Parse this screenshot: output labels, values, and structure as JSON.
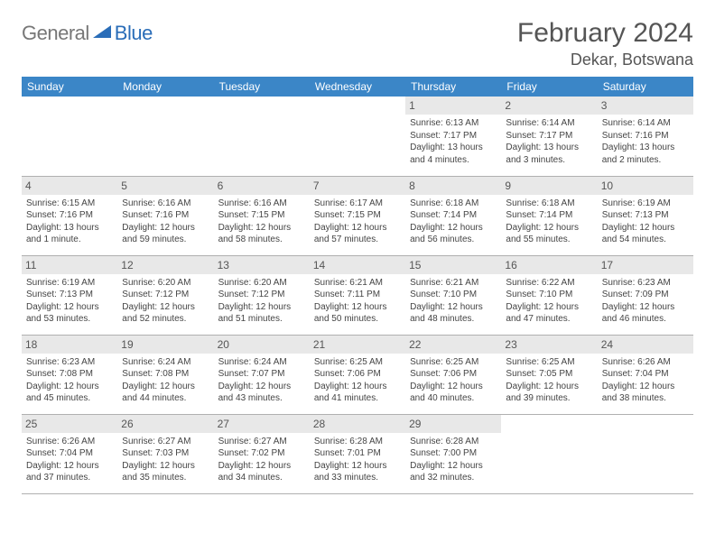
{
  "logo": {
    "gray": "General",
    "blue": "Blue"
  },
  "title": "February 2024",
  "location": "Dekar, Botswana",
  "colors": {
    "header_bg": "#3b86c7",
    "header_text": "#ffffff",
    "daynum_bg": "#e8e8e8",
    "border": "#b0b0b0",
    "logo_gray": "#777777",
    "logo_blue": "#2a6db8"
  },
  "weekdays": [
    "Sunday",
    "Monday",
    "Tuesday",
    "Wednesday",
    "Thursday",
    "Friday",
    "Saturday"
  ],
  "weeks": [
    [
      null,
      null,
      null,
      null,
      {
        "n": "1",
        "sr": "6:13 AM",
        "ss": "7:17 PM",
        "dl": "13 hours and 4 minutes."
      },
      {
        "n": "2",
        "sr": "6:14 AM",
        "ss": "7:17 PM",
        "dl": "13 hours and 3 minutes."
      },
      {
        "n": "3",
        "sr": "6:14 AM",
        "ss": "7:16 PM",
        "dl": "13 hours and 2 minutes."
      }
    ],
    [
      {
        "n": "4",
        "sr": "6:15 AM",
        "ss": "7:16 PM",
        "dl": "13 hours and 1 minute."
      },
      {
        "n": "5",
        "sr": "6:16 AM",
        "ss": "7:16 PM",
        "dl": "12 hours and 59 minutes."
      },
      {
        "n": "6",
        "sr": "6:16 AM",
        "ss": "7:15 PM",
        "dl": "12 hours and 58 minutes."
      },
      {
        "n": "7",
        "sr": "6:17 AM",
        "ss": "7:15 PM",
        "dl": "12 hours and 57 minutes."
      },
      {
        "n": "8",
        "sr": "6:18 AM",
        "ss": "7:14 PM",
        "dl": "12 hours and 56 minutes."
      },
      {
        "n": "9",
        "sr": "6:18 AM",
        "ss": "7:14 PM",
        "dl": "12 hours and 55 minutes."
      },
      {
        "n": "10",
        "sr": "6:19 AM",
        "ss": "7:13 PM",
        "dl": "12 hours and 54 minutes."
      }
    ],
    [
      {
        "n": "11",
        "sr": "6:19 AM",
        "ss": "7:13 PM",
        "dl": "12 hours and 53 minutes."
      },
      {
        "n": "12",
        "sr": "6:20 AM",
        "ss": "7:12 PM",
        "dl": "12 hours and 52 minutes."
      },
      {
        "n": "13",
        "sr": "6:20 AM",
        "ss": "7:12 PM",
        "dl": "12 hours and 51 minutes."
      },
      {
        "n": "14",
        "sr": "6:21 AM",
        "ss": "7:11 PM",
        "dl": "12 hours and 50 minutes."
      },
      {
        "n": "15",
        "sr": "6:21 AM",
        "ss": "7:10 PM",
        "dl": "12 hours and 48 minutes."
      },
      {
        "n": "16",
        "sr": "6:22 AM",
        "ss": "7:10 PM",
        "dl": "12 hours and 47 minutes."
      },
      {
        "n": "17",
        "sr": "6:23 AM",
        "ss": "7:09 PM",
        "dl": "12 hours and 46 minutes."
      }
    ],
    [
      {
        "n": "18",
        "sr": "6:23 AM",
        "ss": "7:08 PM",
        "dl": "12 hours and 45 minutes."
      },
      {
        "n": "19",
        "sr": "6:24 AM",
        "ss": "7:08 PM",
        "dl": "12 hours and 44 minutes."
      },
      {
        "n": "20",
        "sr": "6:24 AM",
        "ss": "7:07 PM",
        "dl": "12 hours and 43 minutes."
      },
      {
        "n": "21",
        "sr": "6:25 AM",
        "ss": "7:06 PM",
        "dl": "12 hours and 41 minutes."
      },
      {
        "n": "22",
        "sr": "6:25 AM",
        "ss": "7:06 PM",
        "dl": "12 hours and 40 minutes."
      },
      {
        "n": "23",
        "sr": "6:25 AM",
        "ss": "7:05 PM",
        "dl": "12 hours and 39 minutes."
      },
      {
        "n": "24",
        "sr": "6:26 AM",
        "ss": "7:04 PM",
        "dl": "12 hours and 38 minutes."
      }
    ],
    [
      {
        "n": "25",
        "sr": "6:26 AM",
        "ss": "7:04 PM",
        "dl": "12 hours and 37 minutes."
      },
      {
        "n": "26",
        "sr": "6:27 AM",
        "ss": "7:03 PM",
        "dl": "12 hours and 35 minutes."
      },
      {
        "n": "27",
        "sr": "6:27 AM",
        "ss": "7:02 PM",
        "dl": "12 hours and 34 minutes."
      },
      {
        "n": "28",
        "sr": "6:28 AM",
        "ss": "7:01 PM",
        "dl": "12 hours and 33 minutes."
      },
      {
        "n": "29",
        "sr": "6:28 AM",
        "ss": "7:00 PM",
        "dl": "12 hours and 32 minutes."
      },
      null,
      null
    ]
  ],
  "labels": {
    "sunrise": "Sunrise:",
    "sunset": "Sunset:",
    "daylight": "Daylight:"
  }
}
